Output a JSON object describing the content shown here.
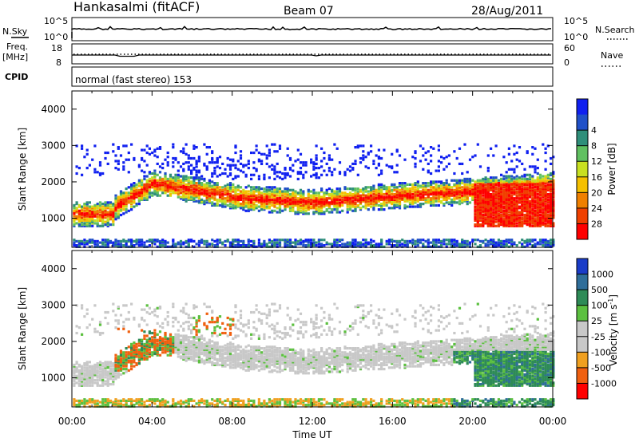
{
  "header": {
    "station": "Hankasalmi (fitACF)",
    "beam": "Beam 07",
    "date": "28/Aug/2011"
  },
  "top_panels": {
    "nsky_label": "N.Sky",
    "nsky_ticks": [
      "10^5",
      "10^0"
    ],
    "nsearch_label": "N.Search",
    "nsearch_ticks": [
      "10^5",
      "10^0"
    ],
    "freq_label": "Freq.",
    "freq_unit": "[MHz]",
    "freq_ticks": [
      "18",
      "8"
    ],
    "nave_label": "Nave",
    "nave_ticks": [
      "60",
      "0"
    ],
    "cpid_label": "CPID",
    "cpid_text": "normal (fast stereo) 153"
  },
  "chart_data": [
    {
      "type": "heatmap",
      "name": "power-panel",
      "ylabel": "Slant Range [km]",
      "yticks": [
        "1000",
        "2000",
        "3000",
        "4000"
      ],
      "ylim": [
        200,
        4500
      ],
      "xlim": [
        0,
        24
      ],
      "colorbar_label": "Power [dB]",
      "colorbar_ticks": [
        "4",
        "8",
        "12",
        "16",
        "20",
        "24",
        "28"
      ],
      "colorbar_colors": [
        "#1020f0",
        "#2050c8",
        "#2f8f7a",
        "#60c060",
        "#c8e020",
        "#f5c000",
        "#f08000",
        "#f04000",
        "#ff0000"
      ],
      "clim": [
        0,
        30
      ]
    },
    {
      "type": "heatmap",
      "name": "velocity-panel",
      "ylabel": "Slant Range [km]",
      "yticks": [
        "1000",
        "2000",
        "3000",
        "4000"
      ],
      "ylim": [
        200,
        4500
      ],
      "xlim": [
        0,
        24
      ],
      "xlabel": "Time UT",
      "xticks": [
        "00:00",
        "04:00",
        "08:00",
        "12:00",
        "16:00",
        "20:00",
        "00:00"
      ],
      "colorbar_label": "Velocity [m s",
      "colorbar_label_sup": "-1",
      "colorbar_label_end": "]",
      "colorbar_ticks": [
        "1000",
        "500",
        "100",
        "25",
        "-25",
        "-100",
        "-500",
        "-1000"
      ],
      "colorbar_colors": [
        "#1a3cc8",
        "#2f6e9a",
        "#2e8b57",
        "#5cc040",
        "#c8c8c8",
        "#c8c8c8",
        "#f0a020",
        "#f06010",
        "#ff0000"
      ]
    }
  ]
}
